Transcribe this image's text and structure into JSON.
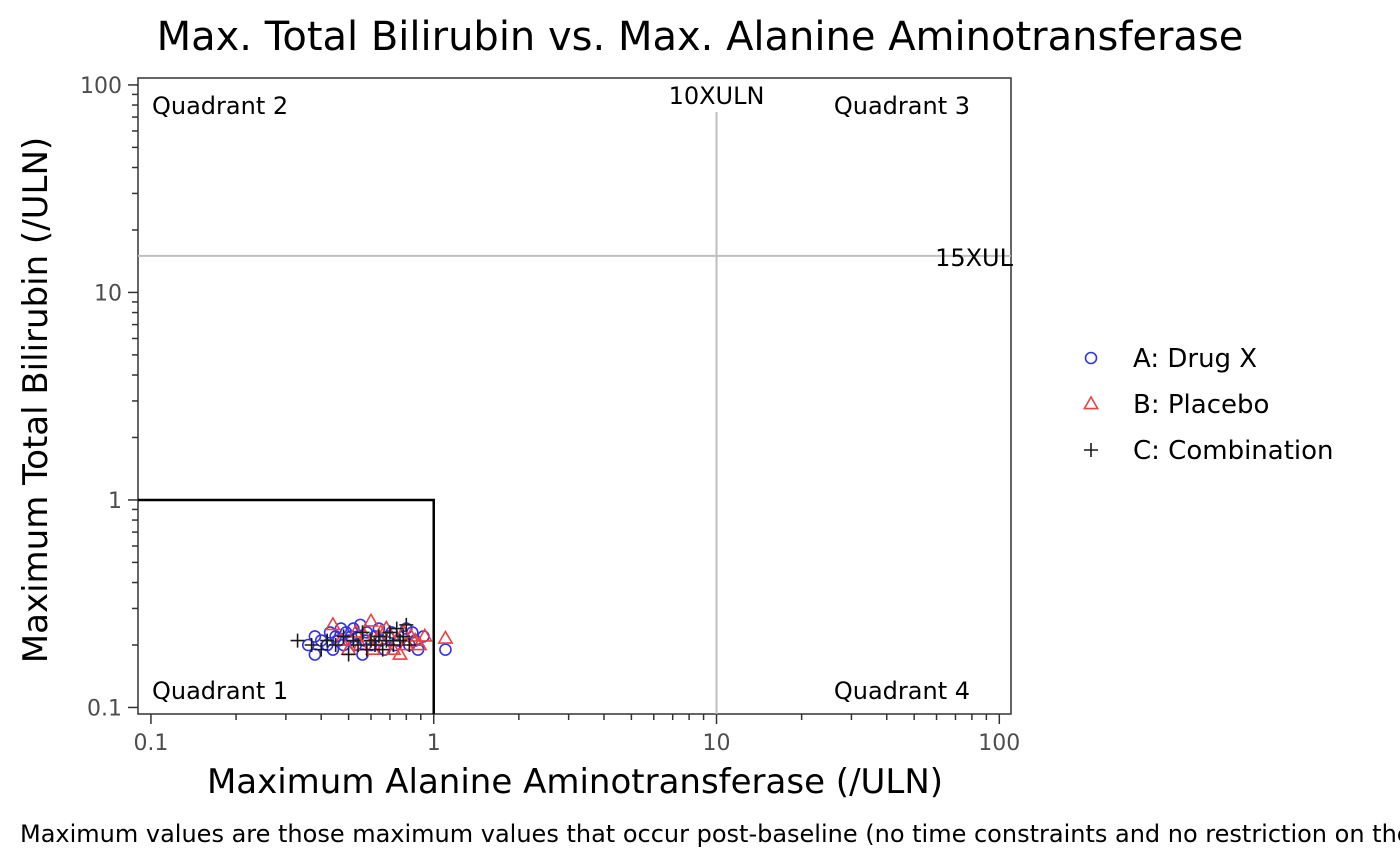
{
  "chart_data": {
    "type": "scatter",
    "title": "Max. Total Bilirubin vs. Max. Alanine Aminotransferase",
    "xlabel": "Maximum Alanine Aminotransferase (/ULN)",
    "ylabel": "Maximum Total Bilirubin (/ULN)",
    "xscale": "log10",
    "yscale": "log10",
    "xlim": [
      0.09,
      110
    ],
    "ylim": [
      0.093,
      108
    ],
    "x_ticks": [
      0.1,
      1,
      10,
      100
    ],
    "x_tick_labels": [
      "0.1",
      "1",
      "10",
      "100"
    ],
    "y_ticks": [
      0.1,
      1,
      10,
      100
    ],
    "y_tick_labels": [
      "0.1",
      "1",
      "10",
      "100"
    ],
    "grid": false,
    "legend": "right",
    "reference_lines": [
      {
        "orientation": "vertical",
        "value": 10,
        "label": "10XULN",
        "color": "#bebebe"
      },
      {
        "orientation": "horizontal",
        "value": 15,
        "label": "15XUL",
        "color": "#bebebe"
      }
    ],
    "quadrant_box": {
      "x_max": 1,
      "y_max": 1,
      "color": "#000000"
    },
    "quadrant_labels": [
      {
        "text": "Quadrant 2",
        "position": "top-left"
      },
      {
        "text": "Quadrant 3",
        "position": "top-right"
      },
      {
        "text": "Quadrant 1",
        "position": "bottom-left"
      },
      {
        "text": "Quadrant 4",
        "position": "bottom-right"
      }
    ],
    "series": [
      {
        "name": "A: Drug X",
        "marker": "circle",
        "color": "#3333e6",
        "points": [
          [
            0.36,
            0.2
          ],
          [
            0.38,
            0.22
          ],
          [
            0.38,
            0.18
          ],
          [
            0.4,
            0.21
          ],
          [
            0.42,
            0.2
          ],
          [
            0.43,
            0.23
          ],
          [
            0.44,
            0.19
          ],
          [
            0.45,
            0.22
          ],
          [
            0.46,
            0.21
          ],
          [
            0.47,
            0.24
          ],
          [
            0.48,
            0.2
          ],
          [
            0.49,
            0.23
          ],
          [
            0.5,
            0.21
          ],
          [
            0.51,
            0.22
          ],
          [
            0.52,
            0.24
          ],
          [
            0.53,
            0.2
          ],
          [
            0.54,
            0.22
          ],
          [
            0.55,
            0.25
          ],
          [
            0.56,
            0.18
          ],
          [
            0.57,
            0.21
          ],
          [
            0.58,
            0.23
          ],
          [
            0.6,
            0.2
          ],
          [
            0.62,
            0.22
          ],
          [
            0.64,
            0.24
          ],
          [
            0.65,
            0.21
          ],
          [
            0.67,
            0.19
          ],
          [
            0.69,
            0.22
          ],
          [
            0.71,
            0.23
          ],
          [
            0.73,
            0.2
          ],
          [
            0.75,
            0.21
          ],
          [
            0.78,
            0.22
          ],
          [
            0.8,
            0.24
          ],
          [
            0.82,
            0.2
          ],
          [
            0.84,
            0.23
          ],
          [
            0.86,
            0.21
          ],
          [
            0.88,
            0.19
          ],
          [
            0.92,
            0.22
          ],
          [
            1.1,
            0.19
          ]
        ]
      },
      {
        "name": "B: Placebo",
        "marker": "triangle",
        "color": "#ee4040",
        "points": [
          [
            0.44,
            0.25
          ],
          [
            0.47,
            0.21
          ],
          [
            0.5,
            0.19
          ],
          [
            0.53,
            0.23
          ],
          [
            0.55,
            0.2
          ],
          [
            0.57,
            0.22
          ],
          [
            0.6,
            0.26
          ],
          [
            0.61,
            0.19
          ],
          [
            0.63,
            0.21
          ],
          [
            0.65,
            0.23
          ],
          [
            0.67,
            0.2
          ],
          [
            0.68,
            0.24
          ],
          [
            0.7,
            0.22
          ],
          [
            0.72,
            0.19
          ],
          [
            0.74,
            0.21
          ],
          [
            0.76,
            0.18
          ],
          [
            0.78,
            0.23
          ],
          [
            0.8,
            0.2
          ],
          [
            0.83,
            0.22
          ],
          [
            0.86,
            0.21
          ],
          [
            0.89,
            0.2
          ],
          [
            0.93,
            0.22
          ],
          [
            1.1,
            0.215
          ]
        ]
      },
      {
        "name": "C: Combination",
        "marker": "plus",
        "color": "#1a1a1a",
        "points": [
          [
            0.33,
            0.21
          ],
          [
            0.37,
            0.2
          ],
          [
            0.4,
            0.19
          ],
          [
            0.42,
            0.21
          ],
          [
            0.45,
            0.2
          ],
          [
            0.48,
            0.22
          ],
          [
            0.5,
            0.18
          ],
          [
            0.52,
            0.21
          ],
          [
            0.54,
            0.2
          ],
          [
            0.56,
            0.23
          ],
          [
            0.58,
            0.19
          ],
          [
            0.6,
            0.21
          ],
          [
            0.62,
            0.2
          ],
          [
            0.64,
            0.22
          ],
          [
            0.66,
            0.19
          ],
          [
            0.68,
            0.21
          ],
          [
            0.7,
            0.23
          ],
          [
            0.72,
            0.2
          ],
          [
            0.74,
            0.24
          ],
          [
            0.76,
            0.21
          ],
          [
            0.78,
            0.22
          ],
          [
            0.8,
            0.25
          ],
          [
            0.82,
            0.2
          ]
        ]
      }
    ]
  },
  "caption": "Maximum values are those maximum values that occur post-baseline (no time constraints and no restriction on the reporting period)."
}
